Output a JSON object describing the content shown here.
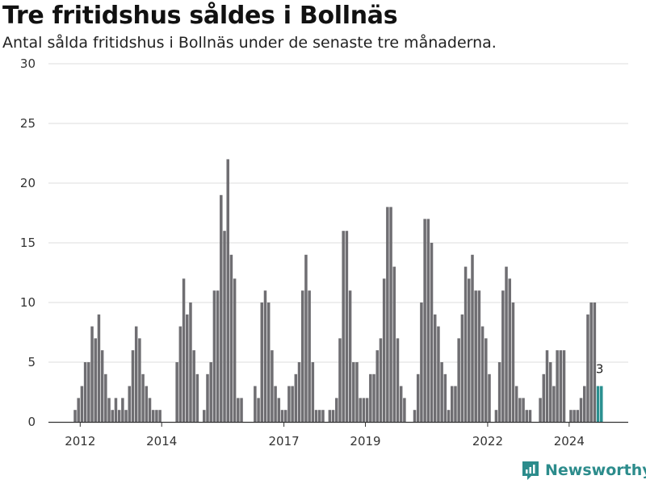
{
  "title": "Tre fritidshus såldes i Bollnäs",
  "subtitle": "Antal sålda fritidshus i Bollnäs under de senaste tre månaderna.",
  "brand": {
    "name": "Newsworthy",
    "color": "#2c8c8c"
  },
  "colors": {
    "bar": "#6f6e72",
    "highlight": "#2a9090",
    "grid": "#dddddd"
  },
  "chart_data": {
    "type": "bar",
    "title": "Tre fritidshus såldes i Bollnäs",
    "subtitle": "Antal sålda fritidshus i Bollnäs under de senaste tre månaderna.",
    "xlabel": "",
    "ylabel": "",
    "ylim": [
      0,
      30
    ],
    "yticks": [
      0,
      5,
      10,
      15,
      20,
      25,
      30
    ],
    "xticks": [
      "2012",
      "2014",
      "2017",
      "2019",
      "2022",
      "2024"
    ],
    "grid": true,
    "start": "2011-11",
    "frequency": "monthly",
    "values": [
      1,
      2,
      3,
      5,
      5,
      8,
      7,
      9,
      6,
      4,
      2,
      1,
      2,
      1,
      2,
      1,
      3,
      6,
      8,
      7,
      4,
      3,
      2,
      1,
      1,
      1,
      0,
      0,
      0,
      0,
      5,
      8,
      12,
      9,
      10,
      6,
      4,
      0,
      1,
      4,
      5,
      11,
      11,
      19,
      16,
      22,
      14,
      12,
      2,
      2,
      0,
      0,
      0,
      3,
      2,
      10,
      11,
      10,
      6,
      3,
      2,
      1,
      1,
      3,
      3,
      4,
      5,
      11,
      14,
      11,
      5,
      1,
      1,
      1,
      0,
      1,
      1,
      2,
      7,
      16,
      16,
      11,
      5,
      5,
      2,
      2,
      2,
      4,
      4,
      6,
      7,
      12,
      18,
      18,
      13,
      7,
      3,
      2,
      0,
      0,
      1,
      4,
      10,
      17,
      17,
      15,
      9,
      8,
      5,
      4,
      1,
      3,
      3,
      7,
      9,
      13,
      12,
      14,
      11,
      11,
      8,
      7,
      4,
      0,
      1,
      5,
      11,
      13,
      12,
      10,
      3,
      2,
      2,
      1,
      1,
      0,
      0,
      2,
      4,
      6,
      5,
      3,
      6,
      6,
      6,
      0,
      1,
      1,
      1,
      2,
      3,
      9,
      10,
      10,
      3,
      3
    ],
    "highlight_last": 2,
    "annotations": [
      {
        "text": "3"
      }
    ]
  }
}
